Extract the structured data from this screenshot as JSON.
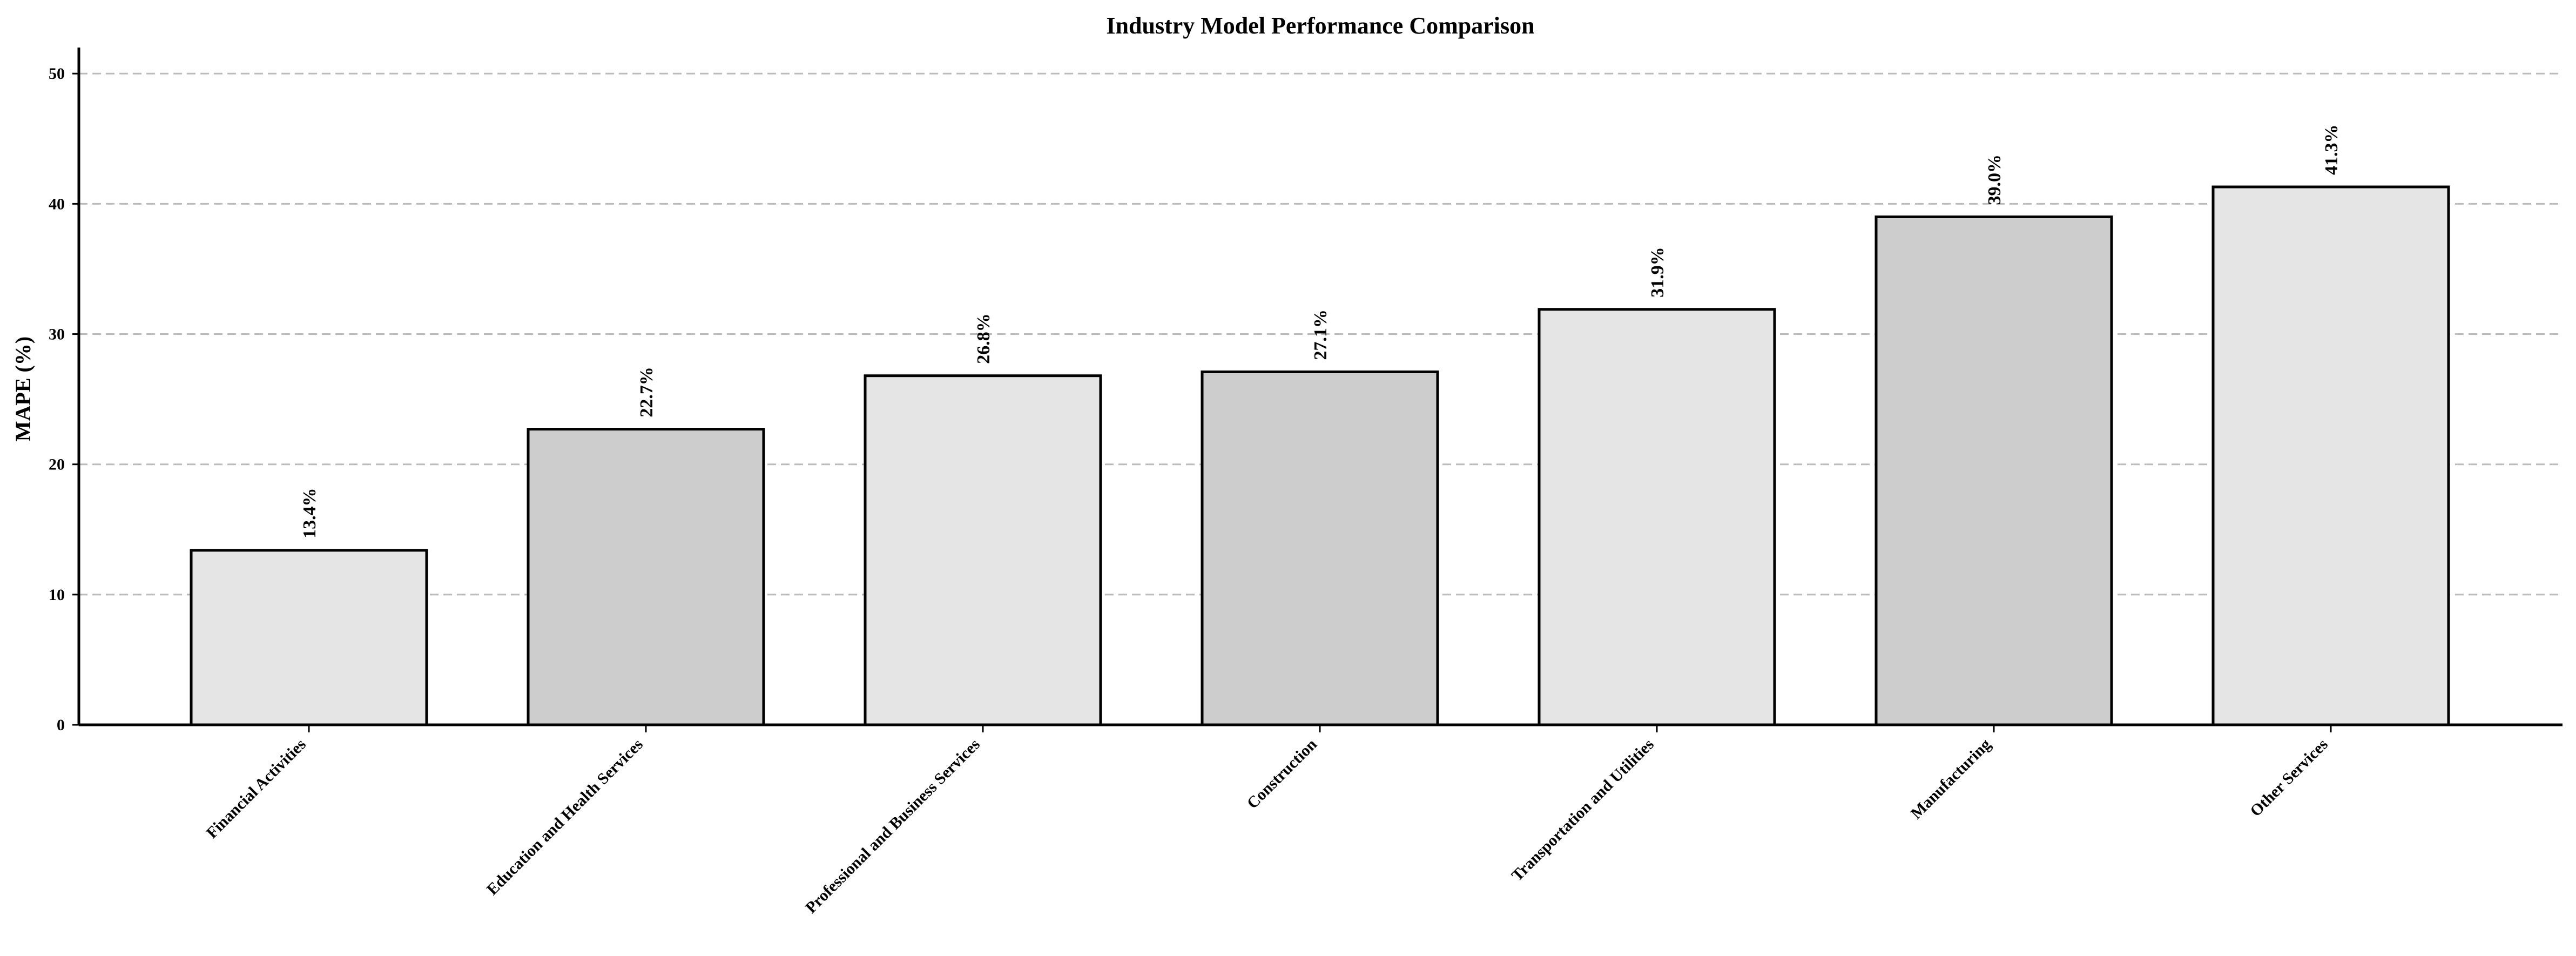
{
  "chart_data": {
    "type": "bar",
    "title": "Industry Model Performance Comparison",
    "xlabel": "",
    "ylabel": "MAPE (%)",
    "ylim": [
      0,
      52
    ],
    "yticks": [
      0,
      10,
      20,
      30,
      40,
      50
    ],
    "grid": true,
    "categories": [
      "Financial Activities",
      "Education and Health Services",
      "Professional and Business Services",
      "Construction",
      "Transportation and Utilities",
      "Manufacturing",
      "Other Services"
    ],
    "values": [
      13.4,
      22.7,
      26.8,
      27.1,
      31.9,
      39.0,
      41.3
    ],
    "data_labels": [
      "13.4%",
      "22.7%",
      "26.8%",
      "27.1%",
      "31.9%",
      "39.0%",
      "41.3%"
    ],
    "bar_colors": [
      "#e5e5e5",
      "#cccccc",
      "#e5e5e5",
      "#cccccc",
      "#e5e5e5",
      "#cccccc",
      "#e5e5e5"
    ],
    "edge_color": "#000000",
    "grid_color": "#bbbbbb"
  }
}
